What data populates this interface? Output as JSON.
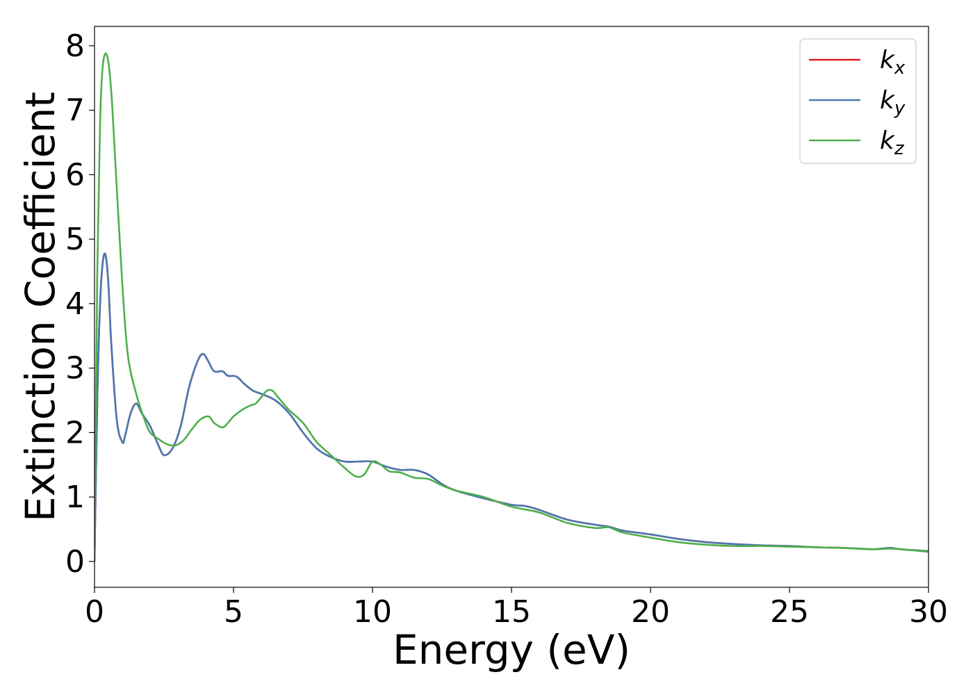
{
  "chart_data": {
    "type": "line",
    "xlabel": "Energy (eV)",
    "ylabel": "Extinction Coefficient",
    "xlim": [
      0,
      30
    ],
    "ylim": [
      -0.4,
      8.3
    ],
    "xticks": [
      0,
      5,
      10,
      15,
      20,
      25,
      30
    ],
    "yticks": [
      0,
      1,
      2,
      3,
      4,
      5,
      6,
      7,
      8
    ],
    "grid": false,
    "legend_position": "top-right",
    "series": [
      {
        "name": "k_x",
        "name_base": "k",
        "name_sub": "x",
        "color": "#e41a1c",
        "x": [
          0,
          0.1,
          0.2,
          0.3,
          0.4,
          0.5,
          0.6,
          0.8,
          1.0,
          1.1,
          1.3,
          1.5,
          1.7,
          2.0,
          2.3,
          2.5,
          2.8,
          3.1,
          3.4,
          3.7,
          3.9,
          4.1,
          4.3,
          4.6,
          4.8,
          5.1,
          5.4,
          5.7,
          6.0,
          6.5,
          7.0,
          7.5,
          8.0,
          8.5,
          9.0,
          9.5,
          10.0,
          10.5,
          11.0,
          11.5,
          12.0,
          12.5,
          13.0,
          14.0,
          15.0,
          15.5,
          16.0,
          17.0,
          18.0,
          18.5,
          19.0,
          20.0,
          21.0,
          22.0,
          23.0,
          24.0,
          25.0,
          26.0,
          27.0,
          28.0,
          28.6,
          29.0,
          30.0
        ],
        "y": [
          0.0,
          2.5,
          4.0,
          4.65,
          4.75,
          4.3,
          3.4,
          2.2,
          1.85,
          1.95,
          2.3,
          2.45,
          2.3,
          2.1,
          1.8,
          1.65,
          1.75,
          2.1,
          2.7,
          3.1,
          3.22,
          3.1,
          2.95,
          2.95,
          2.88,
          2.87,
          2.75,
          2.65,
          2.6,
          2.5,
          2.3,
          2.0,
          1.75,
          1.62,
          1.55,
          1.55,
          1.55,
          1.47,
          1.42,
          1.42,
          1.35,
          1.2,
          1.1,
          0.98,
          0.88,
          0.86,
          0.8,
          0.65,
          0.57,
          0.54,
          0.48,
          0.42,
          0.35,
          0.3,
          0.27,
          0.25,
          0.24,
          0.22,
          0.21,
          0.19,
          0.21,
          0.19,
          0.16
        ]
      },
      {
        "name": "k_y",
        "name_base": "k",
        "name_sub": "y",
        "color": "#4a78b0",
        "x": [
          0,
          0.1,
          0.2,
          0.3,
          0.4,
          0.5,
          0.6,
          0.8,
          1.0,
          1.1,
          1.3,
          1.5,
          1.7,
          2.0,
          2.3,
          2.5,
          2.8,
          3.1,
          3.4,
          3.7,
          3.9,
          4.1,
          4.3,
          4.6,
          4.8,
          5.1,
          5.4,
          5.7,
          6.0,
          6.5,
          7.0,
          7.5,
          8.0,
          8.5,
          9.0,
          9.5,
          10.0,
          10.5,
          11.0,
          11.5,
          12.0,
          12.5,
          13.0,
          14.0,
          15.0,
          15.5,
          16.0,
          17.0,
          18.0,
          18.5,
          19.0,
          20.0,
          21.0,
          22.0,
          23.0,
          24.0,
          25.0,
          26.0,
          27.0,
          28.0,
          28.6,
          29.0,
          30.0
        ],
        "y": [
          0.0,
          2.5,
          4.0,
          4.65,
          4.75,
          4.3,
          3.4,
          2.2,
          1.85,
          1.95,
          2.3,
          2.45,
          2.3,
          2.1,
          1.8,
          1.65,
          1.75,
          2.1,
          2.7,
          3.1,
          3.22,
          3.1,
          2.95,
          2.95,
          2.88,
          2.87,
          2.75,
          2.65,
          2.6,
          2.5,
          2.3,
          2.0,
          1.75,
          1.62,
          1.55,
          1.55,
          1.55,
          1.47,
          1.42,
          1.42,
          1.35,
          1.2,
          1.1,
          0.98,
          0.88,
          0.86,
          0.8,
          0.65,
          0.57,
          0.54,
          0.48,
          0.42,
          0.35,
          0.3,
          0.27,
          0.25,
          0.24,
          0.22,
          0.21,
          0.19,
          0.21,
          0.19,
          0.16
        ]
      },
      {
        "name": "k_z",
        "name_base": "k",
        "name_sub": "z",
        "color": "#4daf4a",
        "x": [
          0,
          0.1,
          0.2,
          0.3,
          0.45,
          0.6,
          0.8,
          1.0,
          1.2,
          1.5,
          1.8,
          2.0,
          2.3,
          2.6,
          2.9,
          3.2,
          3.5,
          3.8,
          4.1,
          4.3,
          4.6,
          4.8,
          5.0,
          5.3,
          5.6,
          5.8,
          6.0,
          6.2,
          6.4,
          6.6,
          7.0,
          7.5,
          8.0,
          8.5,
          9.0,
          9.4,
          9.7,
          10.0,
          10.3,
          10.6,
          11.0,
          11.5,
          12.0,
          12.5,
          13.0,
          14.0,
          15.0,
          16.0,
          17.0,
          18.0,
          18.5,
          19.0,
          20.0,
          21.0,
          22.0,
          23.0,
          24.0,
          25.0,
          26.0,
          27.0,
          28.0,
          28.6,
          29.0,
          30.0
        ],
        "y": [
          0.0,
          4.5,
          6.8,
          7.7,
          7.85,
          7.3,
          5.8,
          4.3,
          3.2,
          2.6,
          2.2,
          2.0,
          1.9,
          1.82,
          1.8,
          1.88,
          2.05,
          2.2,
          2.25,
          2.15,
          2.08,
          2.15,
          2.25,
          2.35,
          2.42,
          2.45,
          2.55,
          2.65,
          2.65,
          2.55,
          2.35,
          2.15,
          1.85,
          1.65,
          1.45,
          1.32,
          1.35,
          1.55,
          1.5,
          1.4,
          1.38,
          1.3,
          1.28,
          1.18,
          1.1,
          1.0,
          0.85,
          0.76,
          0.6,
          0.52,
          0.53,
          0.45,
          0.37,
          0.3,
          0.26,
          0.24,
          0.24,
          0.23,
          0.22,
          0.21,
          0.19,
          0.2,
          0.19,
          0.15
        ]
      }
    ]
  }
}
